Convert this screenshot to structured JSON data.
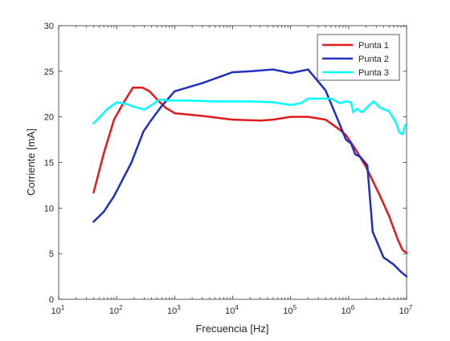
{
  "chart_data": {
    "type": "line",
    "xscale": "log",
    "xlabel": "Frecuencia [Hz]",
    "ylabel": "Corriente [mA]",
    "xlim": [
      10,
      10000000
    ],
    "ylim": [
      0,
      30
    ],
    "xticks": [
      {
        "value": 10,
        "base": "10",
        "exp": "1"
      },
      {
        "value": 100,
        "base": "10",
        "exp": "2"
      },
      {
        "value": 1000,
        "base": "10",
        "exp": "3"
      },
      {
        "value": 10000,
        "base": "10",
        "exp": "4"
      },
      {
        "value": 100000,
        "base": "10",
        "exp": "5"
      },
      {
        "value": 1000000,
        "base": "10",
        "exp": "6"
      },
      {
        "value": 10000000,
        "base": "10",
        "exp": "7"
      }
    ],
    "yticks": [
      0,
      5,
      10,
      15,
      20,
      25,
      30
    ],
    "grid": false,
    "legend_position": "top-right",
    "series": [
      {
        "name": "Punta 1",
        "color": "#e31a1c",
        "points": [
          [
            40,
            11.7
          ],
          [
            60,
            16.0
          ],
          [
            90,
            19.7
          ],
          [
            130,
            21.5
          ],
          [
            190,
            23.2
          ],
          [
            280,
            23.2
          ],
          [
            370,
            22.8
          ],
          [
            500,
            21.9
          ],
          [
            700,
            21.0
          ],
          [
            1000,
            20.4
          ],
          [
            3000,
            20.1
          ],
          [
            10000,
            19.7
          ],
          [
            30000,
            19.6
          ],
          [
            50000,
            19.7
          ],
          [
            100000,
            20.0
          ],
          [
            200000,
            20.0
          ],
          [
            400000,
            19.7
          ],
          [
            700000,
            18.6
          ],
          [
            900000,
            18.0
          ],
          [
            1300000,
            16.5
          ],
          [
            2000000,
            14.5
          ],
          [
            3500000,
            11.3
          ],
          [
            5000000,
            9.1
          ],
          [
            7000000,
            6.6
          ],
          [
            8500000,
            5.4
          ],
          [
            10000000,
            5.1
          ]
        ]
      },
      {
        "name": "Punta 2",
        "color": "#1f2fbf",
        "points": [
          [
            40,
            8.5
          ],
          [
            60,
            9.6
          ],
          [
            90,
            11.3
          ],
          [
            180,
            15.0
          ],
          [
            290,
            18.4
          ],
          [
            400,
            19.7
          ],
          [
            600,
            21.2
          ],
          [
            1000,
            22.8
          ],
          [
            3000,
            23.7
          ],
          [
            10000,
            24.9
          ],
          [
            20000,
            25.0
          ],
          [
            50000,
            25.2
          ],
          [
            100000,
            24.8
          ],
          [
            200000,
            25.2
          ],
          [
            400000,
            22.9
          ],
          [
            700000,
            19.2
          ],
          [
            900000,
            17.5
          ],
          [
            1100000,
            17.1
          ],
          [
            1300000,
            15.9
          ],
          [
            1600000,
            15.6
          ],
          [
            2100000,
            14.7
          ],
          [
            2600000,
            7.4
          ],
          [
            4000000,
            4.6
          ],
          [
            6000000,
            3.8
          ],
          [
            8000000,
            3.0
          ],
          [
            10000000,
            2.5
          ]
        ]
      },
      {
        "name": "Punta 3",
        "color": "#00ffff",
        "points": [
          [
            40,
            19.3
          ],
          [
            55,
            20.2
          ],
          [
            70,
            20.9
          ],
          [
            100,
            21.6
          ],
          [
            150,
            21.4
          ],
          [
            200,
            21.1
          ],
          [
            300,
            20.8
          ],
          [
            400,
            21.3
          ],
          [
            550,
            21.9
          ],
          [
            800,
            21.8
          ],
          [
            1500,
            21.8
          ],
          [
            5000,
            21.7
          ],
          [
            20000,
            21.7
          ],
          [
            50000,
            21.6
          ],
          [
            100000,
            21.3
          ],
          [
            150000,
            21.5
          ],
          [
            200000,
            22.0
          ],
          [
            500000,
            22.0
          ],
          [
            700000,
            21.5
          ],
          [
            900000,
            21.7
          ],
          [
            1100000,
            21.6
          ],
          [
            1200000,
            20.5
          ],
          [
            1400000,
            20.9
          ],
          [
            1700000,
            20.5
          ],
          [
            2200000,
            21.2
          ],
          [
            2700000,
            21.7
          ],
          [
            3500000,
            21.0
          ],
          [
            5000000,
            20.6
          ],
          [
            6500000,
            19.4
          ],
          [
            7500000,
            18.3
          ],
          [
            8500000,
            18.1
          ],
          [
            9500000,
            19.1
          ]
        ]
      }
    ]
  }
}
